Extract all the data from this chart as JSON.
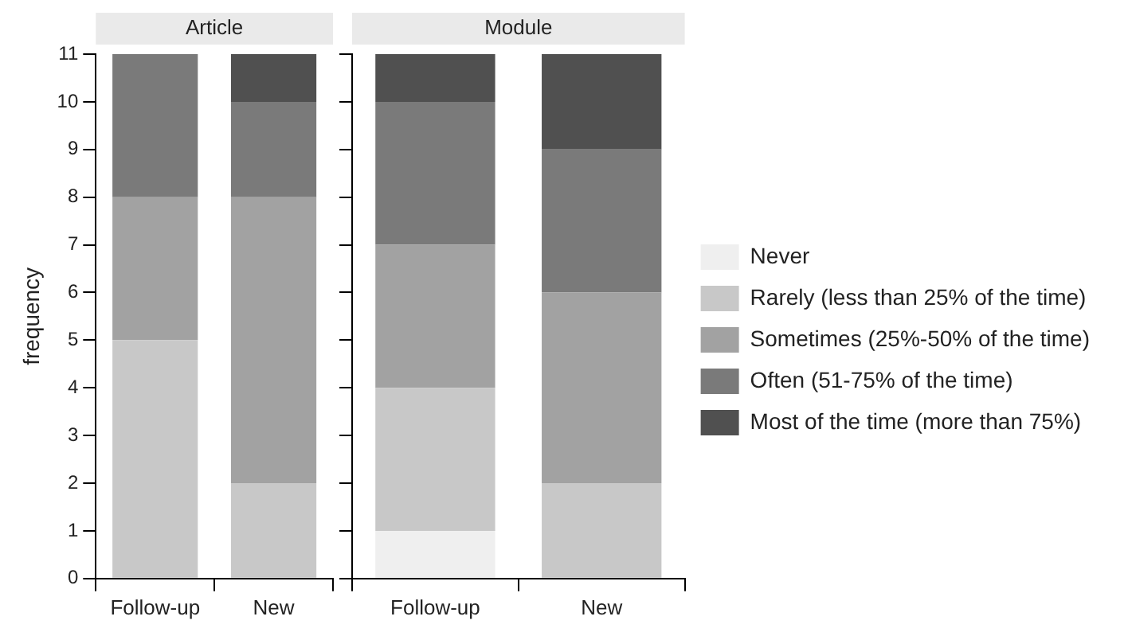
{
  "chart_data": [
    {
      "type": "bar",
      "title": "Article",
      "ylabel": "frequency",
      "categories": [
        "Follow-up",
        "New"
      ],
      "stacked": true,
      "ylim": [
        0,
        11
      ],
      "yticks": [
        0,
        1,
        2,
        3,
        4,
        5,
        6,
        7,
        8,
        9,
        10,
        11
      ],
      "grid": false,
      "legend": false,
      "series": [
        {
          "color": "#efefef",
          "values": [
            0,
            0
          ]
        },
        {
          "color": "#c8c8c8",
          "values": [
            5,
            2
          ]
        },
        {
          "color": "#a2a2a2",
          "values": [
            3,
            6
          ]
        },
        {
          "color": "#7a7a7a",
          "values": [
            3,
            2
          ]
        },
        {
          "color": "#505050",
          "values": [
            0,
            1
          ]
        }
      ]
    },
    {
      "type": "bar",
      "title": "Module",
      "categories": [
        "Follow-up",
        "New"
      ],
      "stacked": true,
      "ylim": [
        0,
        11
      ],
      "yticks": [
        0,
        1,
        2,
        3,
        4,
        5,
        6,
        7,
        8,
        9,
        10,
        11
      ],
      "grid": false,
      "legend": "right",
      "tick_labels": "x",
      "series": [
        {
          "name": "Never",
          "color": "#efefef",
          "values": [
            1,
            0
          ]
        },
        {
          "name": "Rarely (less than 25% of the time)",
          "color": "#c8c8c8",
          "values": [
            3,
            2
          ]
        },
        {
          "name": "Sometimes (25%-50% of the time)",
          "color": "#a2a2a2",
          "values": [
            3,
            4
          ]
        },
        {
          "name": "Often (51-75% of the time)",
          "color": "#7a7a7a",
          "values": [
            3,
            3
          ]
        },
        {
          "name": "Most of the time (more than 75%)",
          "color": "#505050",
          "values": [
            1,
            2
          ]
        }
      ]
    }
  ]
}
